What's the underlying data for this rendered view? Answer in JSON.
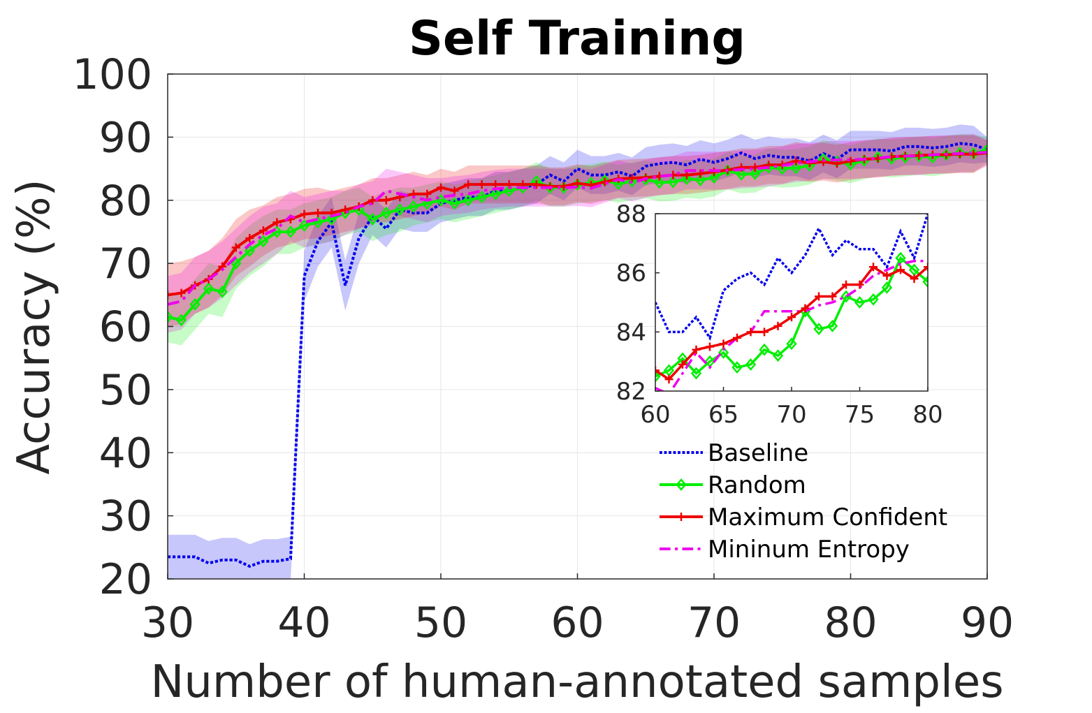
{
  "chart_data": {
    "type": "line",
    "title": "Self Training",
    "xlabel": "Number of human-annotated samples",
    "ylabel": "Accuracy (%)",
    "xlim": [
      30,
      90
    ],
    "ylim": [
      20,
      100
    ],
    "xticks": [
      30,
      40,
      50,
      60,
      70,
      80,
      90
    ],
    "yticks": [
      20,
      30,
      40,
      50,
      60,
      70,
      80,
      90,
      100
    ],
    "grid": true,
    "legend_position": "lower-right",
    "series": [
      {
        "name": "Baseline",
        "color": "#0000ee",
        "style": "dotted",
        "marker": "none",
        "x": [
          30,
          31,
          32,
          33,
          34,
          35,
          36,
          37,
          38,
          39,
          40,
          41,
          42,
          43,
          44,
          45,
          46,
          47,
          48,
          49,
          50,
          51,
          52,
          53,
          54,
          55,
          56,
          57,
          58,
          59,
          60,
          61,
          62,
          63,
          64,
          65,
          66,
          67,
          68,
          69,
          70,
          71,
          72,
          73,
          74,
          75,
          76,
          77,
          78,
          79,
          80,
          81,
          82,
          83,
          84,
          85,
          86,
          87,
          88,
          89,
          90
        ],
        "values": [
          23.5,
          23.5,
          23.5,
          22.5,
          23,
          23,
          22,
          22.8,
          22.8,
          23.2,
          68,
          73.5,
          76.5,
          66.5,
          74,
          77.5,
          75.5,
          78.5,
          78,
          78,
          79.5,
          80,
          80.5,
          80.5,
          81.5,
          81.5,
          82,
          82.5,
          84,
          83,
          85,
          84,
          84,
          84.5,
          83.8,
          85.4,
          85.8,
          86,
          85.6,
          86.5,
          86,
          86.6,
          87.5,
          86.6,
          87.1,
          86.8,
          86.8,
          86.2,
          87.4,
          86.5,
          88,
          88,
          88,
          87.8,
          88.5,
          88.5,
          88.3,
          88.5,
          89,
          88.8,
          88
        ],
        "band": [
          3.5,
          3.5,
          3.5,
          3.5,
          3.5,
          3.5,
          3.5,
          3.5,
          3.5,
          3.5,
          4,
          4,
          4,
          4,
          4,
          3,
          3,
          3,
          3,
          3,
          3,
          3,
          3,
          3,
          3,
          3,
          3,
          3,
          3,
          3,
          3,
          3,
          3,
          3,
          3,
          3,
          3,
          3,
          3,
          3,
          3,
          3,
          3,
          3,
          3,
          3,
          3,
          3,
          3,
          3,
          3,
          3,
          3,
          3,
          3,
          3,
          3,
          3,
          3,
          3,
          2
        ]
      },
      {
        "name": "Random",
        "color": "#00ee00",
        "style": "solid",
        "marker": "diamond",
        "x": [
          30,
          31,
          32,
          33,
          34,
          35,
          36,
          37,
          38,
          39,
          40,
          41,
          42,
          43,
          44,
          45,
          46,
          47,
          48,
          49,
          50,
          51,
          52,
          53,
          54,
          55,
          56,
          57,
          58,
          59,
          60,
          61,
          62,
          63,
          64,
          65,
          66,
          67,
          68,
          69,
          70,
          71,
          72,
          73,
          74,
          75,
          76,
          77,
          78,
          79,
          80,
          81,
          82,
          83,
          84,
          85,
          86,
          87,
          88,
          89,
          90
        ],
        "values": [
          61.5,
          61,
          63.5,
          66,
          65.5,
          70,
          72,
          73.5,
          75,
          75,
          76,
          76.5,
          77,
          78,
          78.5,
          77,
          78,
          78.5,
          79,
          79.5,
          80,
          79.5,
          80,
          80.5,
          81,
          81.5,
          82,
          83,
          82,
          82,
          82.5,
          82.7,
          83.1,
          82.6,
          83,
          83.3,
          82.8,
          82.9,
          83.4,
          83.2,
          83.6,
          84.7,
          84.1,
          84.2,
          85.2,
          85,
          85.1,
          85.5,
          86.5,
          86.1,
          85.7,
          86.3,
          86.8,
          86.6,
          86.8,
          87,
          86.8,
          87.2,
          87.5,
          87.4,
          88
        ],
        "band": [
          4,
          4,
          4,
          4,
          4,
          4,
          4,
          4,
          3.5,
          3.5,
          3.5,
          3.5,
          3.5,
          3.5,
          3.5,
          3.5,
          3.5,
          3.5,
          3,
          3,
          3,
          3,
          3,
          3,
          3,
          3,
          3,
          3,
          3,
          3,
          3,
          3,
          3,
          3,
          3,
          3,
          3,
          3,
          3,
          3,
          3,
          3,
          3,
          3,
          3,
          3,
          3,
          3,
          3,
          3,
          3,
          3,
          3,
          3,
          3,
          3,
          3,
          3,
          3,
          3,
          2
        ]
      },
      {
        "name": "Maximum Confident",
        "color": "#ee0000",
        "style": "solid",
        "marker": "plus",
        "x": [
          30,
          31,
          32,
          33,
          34,
          35,
          36,
          37,
          38,
          39,
          40,
          41,
          42,
          43,
          44,
          45,
          46,
          47,
          48,
          49,
          50,
          51,
          52,
          53,
          54,
          55,
          56,
          57,
          58,
          59,
          60,
          61,
          62,
          63,
          64,
          65,
          66,
          67,
          68,
          69,
          70,
          71,
          72,
          73,
          74,
          75,
          76,
          77,
          78,
          79,
          80,
          81,
          82,
          83,
          84,
          85,
          86,
          87,
          88,
          89,
          90
        ],
        "values": [
          65,
          65.3,
          66.5,
          67.5,
          69.5,
          72.5,
          74,
          75.2,
          76.5,
          77,
          77.8,
          78,
          78,
          78.5,
          79,
          80,
          80,
          80.5,
          81,
          81,
          82,
          81.5,
          82.5,
          82.5,
          82.5,
          82.5,
          82.5,
          82.5,
          82.2,
          82.2,
          82.7,
          82.4,
          82.9,
          83.4,
          83.5,
          83.6,
          83.8,
          84,
          84,
          84.2,
          84.5,
          84.8,
          85.2,
          85.2,
          85.6,
          85.6,
          86.2,
          85.9,
          86.1,
          85.8,
          86.2,
          86.5,
          86.6,
          86.9,
          87,
          87.1,
          87.2,
          87.2,
          87.3,
          87.3,
          87.5
        ],
        "band": [
          5,
          5,
          4.5,
          4.5,
          4.5,
          4.5,
          4.5,
          4,
          4,
          4,
          4,
          4,
          3.5,
          3.5,
          3.5,
          3.5,
          3.5,
          3.5,
          3.5,
          3,
          3,
          3,
          3,
          3,
          3,
          3,
          3,
          3,
          3,
          3,
          3,
          3,
          3,
          3,
          3,
          3,
          3,
          3,
          3,
          3,
          3,
          3,
          3,
          3,
          3,
          3,
          3,
          3,
          3,
          3,
          3,
          3,
          3,
          3,
          3,
          3,
          3,
          3,
          3,
          3,
          2
        ]
      },
      {
        "name": "Mininum Entropy",
        "color": "#ee00ee",
        "style": "dashdot",
        "marker": "none",
        "x": [
          30,
          31,
          32,
          33,
          34,
          35,
          36,
          37,
          38,
          39,
          40,
          41,
          42,
          43,
          44,
          45,
          46,
          47,
          48,
          49,
          50,
          51,
          52,
          53,
          54,
          55,
          56,
          57,
          58,
          59,
          60,
          61,
          62,
          63,
          64,
          65,
          66,
          67,
          68,
          69,
          70,
          71,
          72,
          73,
          74,
          75,
          76,
          77,
          78,
          79,
          80,
          81,
          82,
          83,
          84,
          85,
          86,
          87,
          88,
          89,
          90
        ],
        "values": [
          63.5,
          64,
          66.5,
          67.5,
          69,
          71,
          73,
          74.5,
          75.5,
          77.5,
          76.5,
          77,
          77.5,
          78,
          79,
          79.5,
          81.5,
          81,
          80.5,
          80,
          80.5,
          80.8,
          81,
          81.5,
          81.8,
          82,
          82,
          82,
          82,
          82,
          82.1,
          81.9,
          82.6,
          83.3,
          82.8,
          83.4,
          83.8,
          84,
          84.7,
          84.7,
          84.7,
          84.7,
          84.9,
          85,
          85.2,
          85.5,
          85.9,
          86.1,
          86.3,
          86.4,
          86.4,
          86.5,
          86.7,
          86.9,
          87,
          87,
          87.2,
          87.3,
          87.4,
          87.5,
          87.6
        ],
        "band": [
          4.5,
          4.5,
          4.5,
          4.5,
          4.5,
          4.5,
          4.5,
          4.5,
          4,
          4,
          4,
          4,
          4,
          3.5,
          3.5,
          3.5,
          3.5,
          3.5,
          3.5,
          3.5,
          3,
          3,
          3,
          3,
          3,
          3,
          3,
          3,
          3,
          3,
          3,
          3,
          3,
          3,
          3,
          3,
          3,
          3,
          3,
          3,
          3,
          3,
          3,
          3,
          3,
          3,
          3,
          3,
          3,
          3,
          3,
          3,
          3,
          3,
          3,
          3,
          3,
          3,
          3,
          3,
          2
        ]
      }
    ],
    "inset": {
      "xlim": [
        60,
        80
      ],
      "ylim": [
        82,
        88
      ],
      "xticks": [
        60,
        65,
        70,
        75,
        80
      ],
      "yticks": [
        82,
        84,
        86,
        88
      ]
    }
  }
}
